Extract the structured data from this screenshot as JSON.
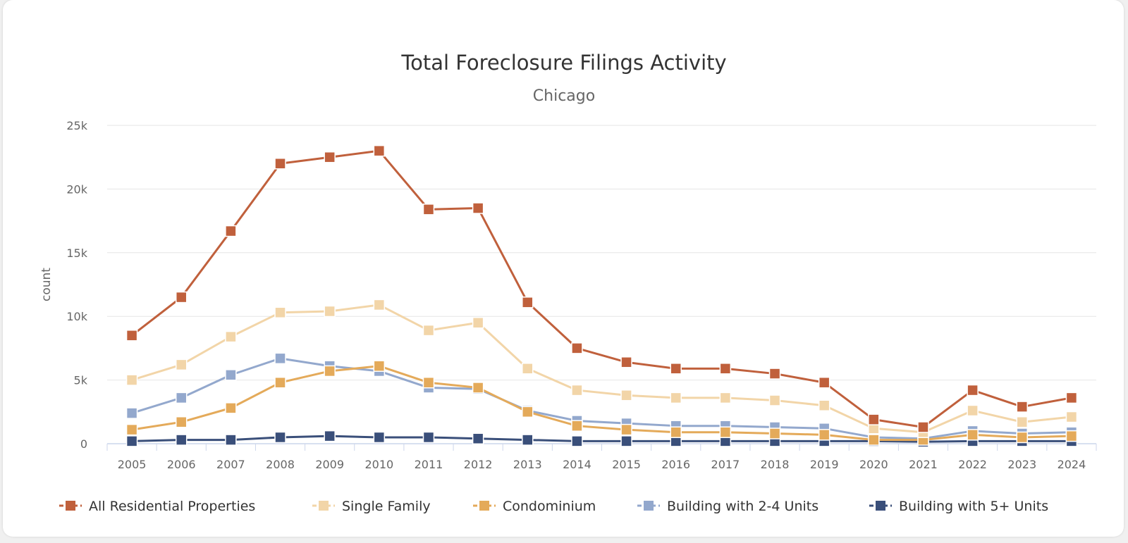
{
  "chart_data": {
    "type": "line",
    "title": "Total Foreclosure Filings Activity",
    "subtitle": "Chicago",
    "ylabel": "count",
    "xlabel": "",
    "ylim": [
      0,
      25000
    ],
    "y_ticks": [
      0,
      5000,
      10000,
      15000,
      20000,
      25000
    ],
    "y_tick_labels": [
      "0",
      "5k",
      "10k",
      "15k",
      "20k",
      "25k"
    ],
    "grid": true,
    "legend_position": "bottom",
    "categories": [
      "2005",
      "2006",
      "2007",
      "2008",
      "2009",
      "2010",
      "2011",
      "2012",
      "2013",
      "2014",
      "2015",
      "2016",
      "2017",
      "2018",
      "2019",
      "2020",
      "2021",
      "2022",
      "2023",
      "2024"
    ],
    "series": [
      {
        "name": "All Residential Properties",
        "color": "#c0603c",
        "values": [
          8500,
          11500,
          16700,
          22000,
          22500,
          23000,
          18400,
          18500,
          11100,
          7500,
          6400,
          5900,
          5900,
          5500,
          4800,
          1900,
          1300,
          4200,
          2900,
          3600
        ]
      },
      {
        "name": "Single Family",
        "color": "#f2d5a8",
        "values": [
          5000,
          6200,
          8400,
          10300,
          10400,
          10900,
          8900,
          9500,
          5900,
          4200,
          3800,
          3600,
          3600,
          3400,
          3000,
          1200,
          900,
          2600,
          1700,
          2100
        ]
      },
      {
        "name": "Condominium",
        "color": "#e4aa5a",
        "values": [
          1100,
          1700,
          2800,
          4800,
          5700,
          6100,
          4800,
          4400,
          2500,
          1400,
          1100,
          900,
          900,
          800,
          700,
          300,
          300,
          700,
          500,
          600
        ]
      },
      {
        "name": "Building with 2-4 Units",
        "color": "#93a8cd",
        "values": [
          2400,
          3600,
          5400,
          6700,
          6100,
          5700,
          4400,
          4300,
          2600,
          1800,
          1600,
          1400,
          1400,
          1300,
          1200,
          500,
          400,
          1000,
          800,
          900
        ]
      },
      {
        "name": "Building with 5+ Units",
        "color": "#3a4f7a",
        "values": [
          200,
          300,
          300,
          500,
          600,
          500,
          500,
          400,
          300,
          200,
          200,
          200,
          200,
          200,
          200,
          200,
          150,
          200,
          200,
          200
        ]
      }
    ]
  }
}
